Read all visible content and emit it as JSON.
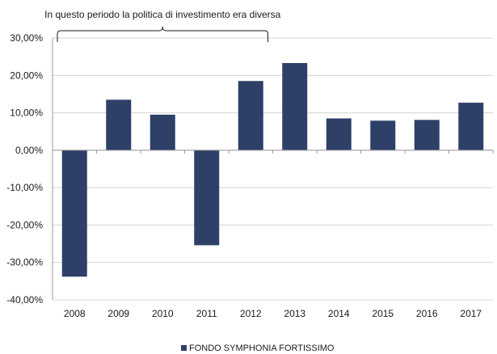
{
  "chart_data": {
    "type": "bar",
    "categories": [
      "2008",
      "2009",
      "2010",
      "2011",
      "2012",
      "2013",
      "2014",
      "2015",
      "2016",
      "2017"
    ],
    "series": [
      {
        "name": "FONDO SYMPHONIA FORTISSIMO",
        "values": [
          -33.8,
          13.5,
          9.5,
          -25.4,
          18.5,
          23.3,
          8.5,
          7.9,
          8.1,
          12.7
        ]
      }
    ],
    "ylim": [
      -40,
      30
    ],
    "yticks": [
      30,
      20,
      10,
      0,
      -10,
      -20,
      -30,
      -40
    ],
    "ytick_labels": [
      "30,00%",
      "20,00%",
      "10,00%",
      "0,00%",
      "-10,00%",
      "-20,00%",
      "-30,00%",
      "-40,00%"
    ],
    "grid": true,
    "legend_position": "bottom-center",
    "bar_color": "#2e4068",
    "annotation": {
      "text": "In questo periodo la politica di investimento era diversa",
      "span": [
        "2008",
        "2012"
      ]
    }
  }
}
